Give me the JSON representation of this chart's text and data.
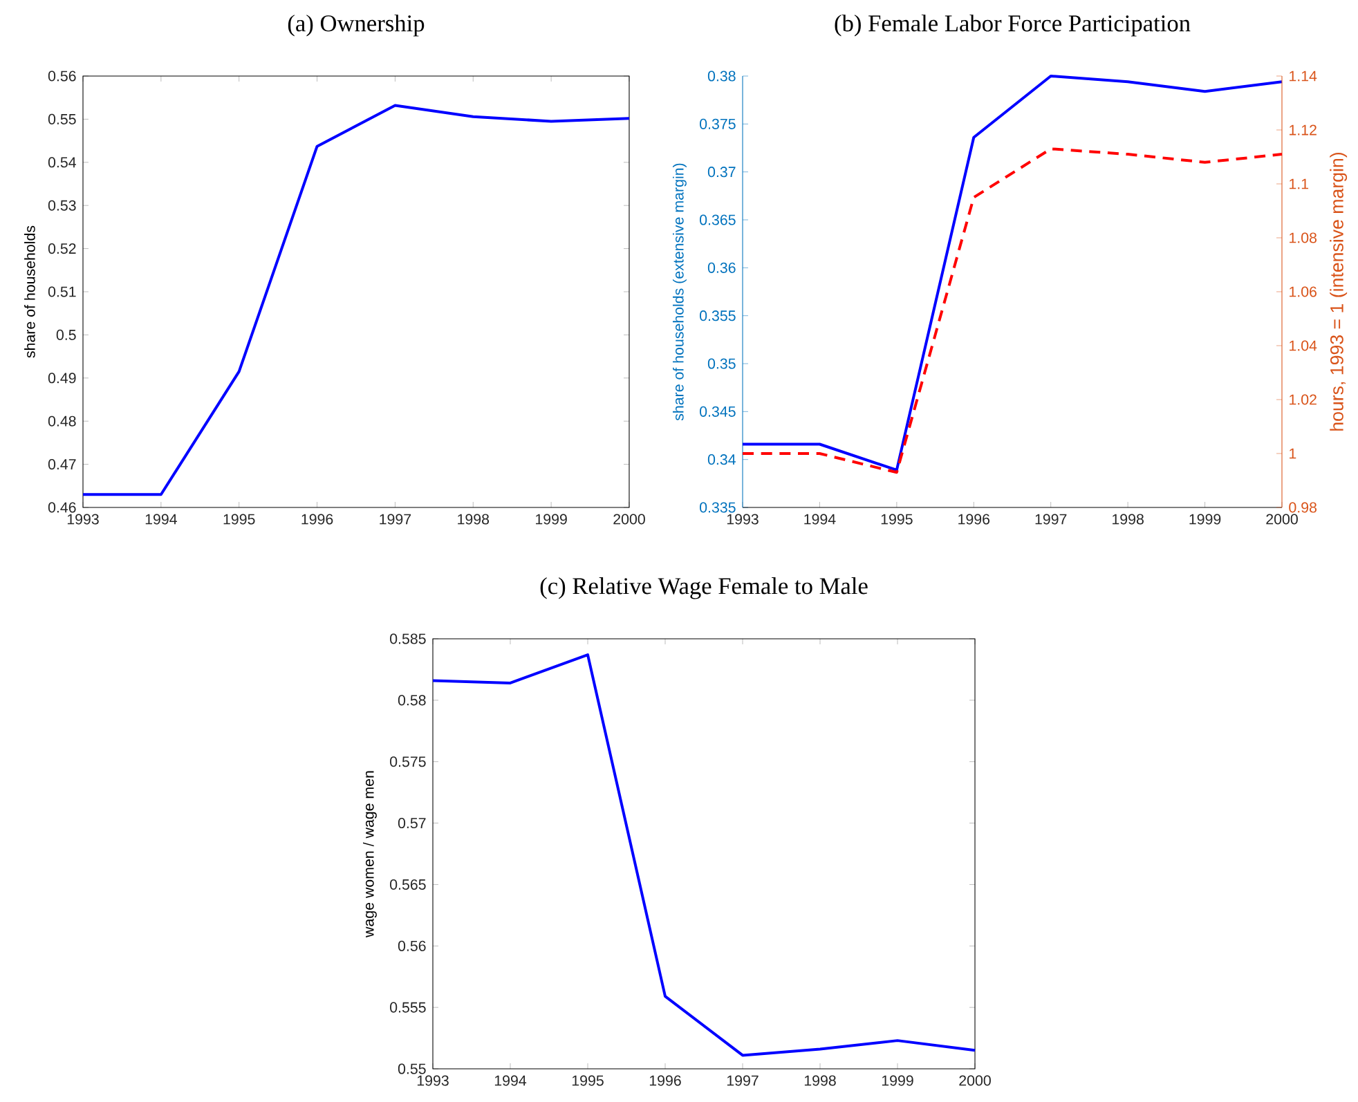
{
  "chart_data": [
    {
      "type": "line",
      "title": "(a) Ownership",
      "ylabel": "share of households",
      "x": [
        1993,
        1994,
        1995,
        1996,
        1997,
        1998,
        1999,
        2000
      ],
      "series": [
        {
          "color": "#0000ff",
          "line_style": "solid",
          "values": [
            0.463,
            0.463,
            0.4915,
            0.5437,
            0.5532,
            0.5506,
            0.5495,
            0.5502
          ]
        }
      ],
      "xlim": [
        1993,
        2000
      ],
      "xticks": [
        1993,
        1994,
        1995,
        1996,
        1997,
        1998,
        1999,
        2000
      ],
      "ylim": [
        0.46,
        0.56
      ],
      "yticks": [
        0.46,
        0.47,
        0.48,
        0.49,
        0.5,
        0.51,
        0.52,
        0.53,
        0.54,
        0.55,
        0.56
      ]
    },
    {
      "type": "line",
      "title": "(b) Female Labor Force Participation",
      "ylabel": "share of households (extensive margin)",
      "y2label": "hours, 1993 = 1 (intensive margin)",
      "x": [
        1993,
        1994,
        1995,
        1996,
        1997,
        1998,
        1999,
        2000
      ],
      "series": [
        {
          "color": "#0000ff",
          "line_style": "solid",
          "values": [
            0.3416,
            0.3416,
            0.3389,
            0.3736,
            0.38,
            0.3794,
            0.3784,
            0.3794
          ]
        },
        {
          "color": "#ff0000",
          "line_style": "dashed",
          "axis": "y2",
          "values": [
            1.0,
            1.0,
            0.993,
            1.095,
            1.113,
            1.111,
            1.108,
            1.111
          ]
        }
      ],
      "xlim": [
        1993,
        2000
      ],
      "xticks": [
        1993,
        1994,
        1995,
        1996,
        1997,
        1998,
        1999,
        2000
      ],
      "ylim": [
        0.335,
        0.38
      ],
      "yticks": [
        0.335,
        0.34,
        0.345,
        0.35,
        0.355,
        0.36,
        0.365,
        0.37,
        0.375,
        0.38
      ],
      "y2lim": [
        0.98,
        1.14
      ],
      "y2ticks": [
        0.98,
        1,
        1.02,
        1.04,
        1.06,
        1.08,
        1.1,
        1.12,
        1.14
      ]
    },
    {
      "type": "line",
      "title": "(c) Relative Wage Female to Male",
      "ylabel": "wage women / wage men",
      "x": [
        1993,
        1994,
        1995,
        1996,
        1997,
        1998,
        1999,
        2000
      ],
      "series": [
        {
          "color": "#0000ff",
          "line_style": "solid",
          "values": [
            0.5816,
            0.5814,
            0.5837,
            0.5559,
            0.5511,
            0.5516,
            0.5523,
            0.5515
          ]
        }
      ],
      "xlim": [
        1993,
        2000
      ],
      "xticks": [
        1993,
        1994,
        1995,
        1996,
        1997,
        1998,
        1999,
        2000
      ],
      "ylim": [
        0.55,
        0.585
      ],
      "yticks": [
        0.55,
        0.555,
        0.56,
        0.565,
        0.57,
        0.575,
        0.58,
        0.585
      ]
    }
  ]
}
